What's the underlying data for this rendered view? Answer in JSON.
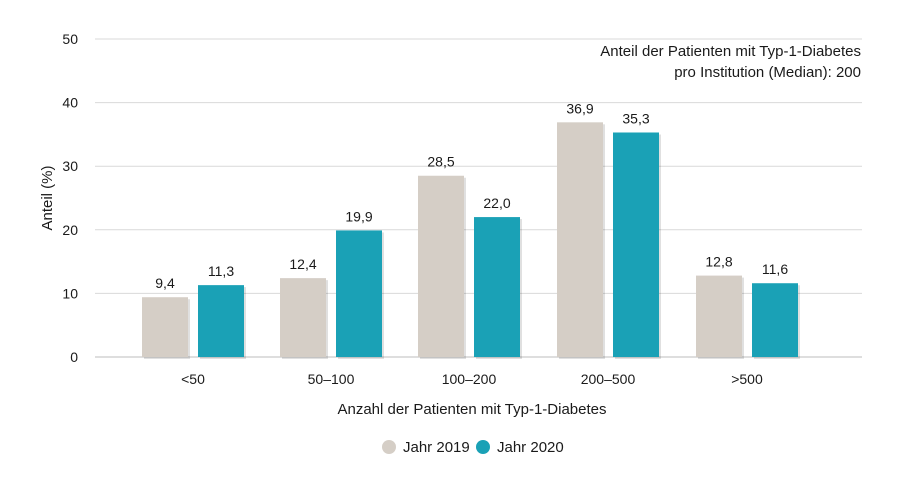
{
  "chart_data": {
    "type": "bar",
    "categories": [
      "<50",
      "50–100",
      "100–200",
      "200–500",
      ">500"
    ],
    "series": [
      {
        "name": "Jahr 2019",
        "values": [
          9.4,
          12.4,
          28.5,
          36.9,
          12.8
        ],
        "labels": [
          "9,4",
          "12,4",
          "28,5",
          "36,9",
          "12,8"
        ],
        "color": "#d5cec6"
      },
      {
        "name": "Jahr 2020",
        "values": [
          11.3,
          19.9,
          22.0,
          35.3,
          11.6
        ],
        "labels": [
          "11,3",
          "19,9",
          "22,0",
          "35,3",
          "11,6"
        ],
        "color": "#1aa1b6"
      }
    ],
    "ylim": [
      0,
      50
    ],
    "yticks": [
      0,
      10,
      20,
      30,
      40,
      50
    ],
    "xlabel": "Anzahl der Patienten mit Typ-1-Diabetes",
    "ylabel": "Anteil (%)",
    "annotation": [
      "Anteil der Patienten mit Typ-1-Diabetes",
      "pro Institution (Median): 200"
    ],
    "grid": true,
    "legend_position": "bottom"
  }
}
